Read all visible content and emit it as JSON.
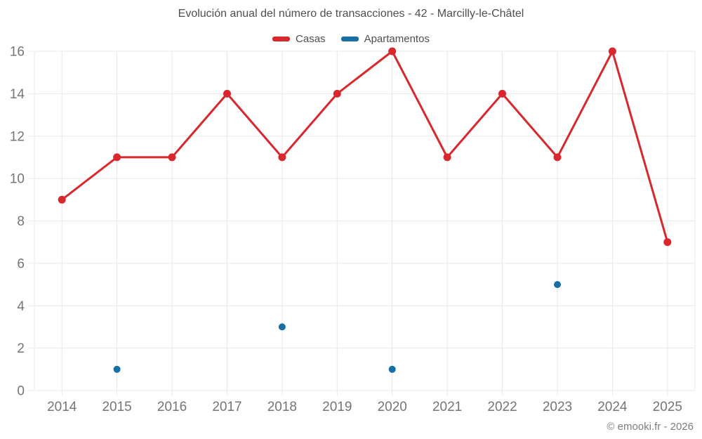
{
  "title": "Evolución anual del número de transacciones - 42 - Marcilly-le-Châtel",
  "footer": {
    "credit": "© emooki.fr - 2026"
  },
  "colors": {
    "casas": "#d8282d",
    "apartamentos": "#176fa5",
    "grid": "#e8e8e8",
    "tick_text": "#757575",
    "title_text": "#4f4f4f",
    "footer_text": "#7d7d7d",
    "background": "#ffffff"
  },
  "chart_data": {
    "type": "line",
    "title": "Evolución anual del número de transacciones - 42 - Marcilly-le-Châtel",
    "x": [
      "2014",
      "2015",
      "2016",
      "2017",
      "2018",
      "2019",
      "2020",
      "2021",
      "2022",
      "2023",
      "2024",
      "2025"
    ],
    "series": [
      {
        "name": "Casas",
        "type": "line",
        "color": "#d8282d",
        "values": [
          9,
          11,
          11,
          14,
          11,
          14,
          16,
          11,
          14,
          11,
          16,
          7
        ]
      },
      {
        "name": "Apartamentos",
        "type": "scatter",
        "color": "#176fa5",
        "values": [
          null,
          1,
          null,
          null,
          3,
          null,
          1,
          null,
          null,
          5,
          null,
          null
        ]
      }
    ],
    "ylim": [
      0,
      16
    ],
    "yticks": [
      0,
      2,
      4,
      6,
      8,
      10,
      12,
      14,
      16
    ],
    "grid": true,
    "legend_position": "top",
    "xlabel": "",
    "ylabel": ""
  }
}
